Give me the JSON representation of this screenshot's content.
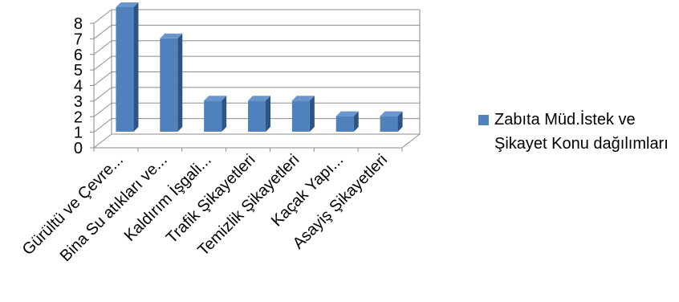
{
  "chart_data": {
    "type": "bar",
    "categories": [
      "Gürültü ve Çevre...",
      "Bina Su atıkları ve...",
      "Kaldırım İşgali...",
      "Trafik Şikayetleri",
      "Temizlik Şikayetleri",
      "Kaçak Yapı...",
      "Asayiş Şikayetleri"
    ],
    "series": [
      {
        "name": "Zabıta Müd.İstek ve Şikayet Konu dağılımları",
        "values": [
          8,
          6,
          2,
          2,
          2,
          1,
          1
        ]
      }
    ],
    "ylim": [
      0,
      8
    ],
    "yticks": [
      "0",
      "1",
      "2",
      "3",
      "4",
      "5",
      "6",
      "7",
      "8"
    ],
    "grid": true,
    "legend": "right",
    "bar_color": "#4F81BD",
    "bar_side_color": "#2E5486",
    "bar_top_color": "#6B96CC"
  }
}
